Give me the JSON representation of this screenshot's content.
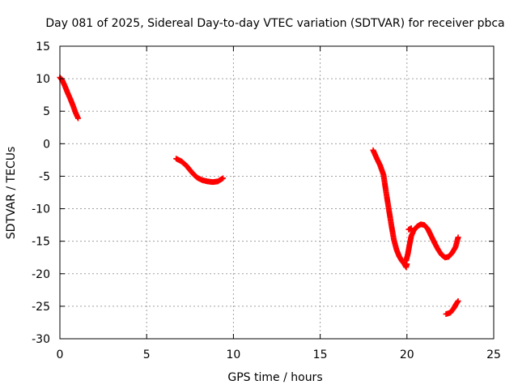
{
  "chart_data": {
    "type": "scatter",
    "title": "Day 081 of 2025, Sidereal Day-to-day VTEC variation (SDTVAR) for receiver pbca",
    "xlabel": "GPS time / hours",
    "ylabel": "SDTVAR / TECUs",
    "xlim": [
      0,
      25
    ],
    "ylim": [
      -30,
      15
    ],
    "xticks": [
      0,
      5,
      10,
      15,
      20,
      25
    ],
    "yticks": [
      15,
      10,
      5,
      0,
      -5,
      -10,
      -15,
      -20,
      -25,
      -30
    ],
    "grid": true,
    "marker": "plus",
    "colors": {
      "series": "#ff0000",
      "grid": "#a0a0a0",
      "axis": "#000000"
    },
    "series": [
      {
        "name": "SDTVAR",
        "segments": [
          [
            [
              0.0,
              10.2
            ],
            [
              0.15,
              9.7
            ],
            [
              0.3,
              8.8
            ],
            [
              0.45,
              7.8
            ],
            [
              0.6,
              6.9
            ],
            [
              0.75,
              5.9
            ],
            [
              0.9,
              4.8
            ],
            [
              1.05,
              3.9
            ]
          ],
          [
            [
              6.7,
              -2.3
            ],
            [
              7.0,
              -2.7
            ],
            [
              7.3,
              -3.4
            ],
            [
              7.6,
              -4.4
            ],
            [
              7.9,
              -5.2
            ],
            [
              8.2,
              -5.6
            ],
            [
              8.5,
              -5.8
            ],
            [
              8.8,
              -5.9
            ],
            [
              9.1,
              -5.8
            ],
            [
              9.4,
              -5.3
            ]
          ],
          [
            [
              18.05,
              -1.0
            ],
            [
              18.25,
              -2.2
            ],
            [
              18.45,
              -3.3
            ],
            [
              18.65,
              -4.8
            ],
            [
              18.8,
              -7.5
            ],
            [
              18.95,
              -10.0
            ],
            [
              19.1,
              -12.5
            ],
            [
              19.25,
              -14.8
            ],
            [
              19.4,
              -16.3
            ],
            [
              19.55,
              -17.3
            ],
            [
              19.7,
              -18.0
            ],
            [
              19.85,
              -18.5
            ],
            [
              19.95,
              -19.0
            ],
            [
              20.0,
              -18.5
            ]
          ],
          [
            [
              19.95,
              -18.0
            ],
            [
              20.05,
              -17.0
            ],
            [
              20.15,
              -15.5
            ],
            [
              20.25,
              -14.2
            ],
            [
              20.4,
              -13.3
            ],
            [
              20.6,
              -12.7
            ],
            [
              20.8,
              -12.4
            ],
            [
              21.0,
              -12.5
            ],
            [
              21.2,
              -13.1
            ],
            [
              21.4,
              -14.2
            ],
            [
              21.6,
              -15.3
            ],
            [
              21.8,
              -16.3
            ],
            [
              22.0,
              -17.1
            ],
            [
              22.2,
              -17.5
            ],
            [
              22.4,
              -17.4
            ],
            [
              22.6,
              -16.8
            ],
            [
              22.8,
              -15.9
            ],
            [
              22.95,
              -14.4
            ]
          ],
          [
            [
              20.1,
              -13.2
            ],
            [
              20.25,
              -13.0
            ]
          ],
          [
            [
              22.25,
              -26.2
            ],
            [
              22.5,
              -26.0
            ],
            [
              22.7,
              -25.3
            ],
            [
              22.85,
              -24.6
            ],
            [
              22.95,
              -24.2
            ]
          ]
        ]
      }
    ]
  }
}
